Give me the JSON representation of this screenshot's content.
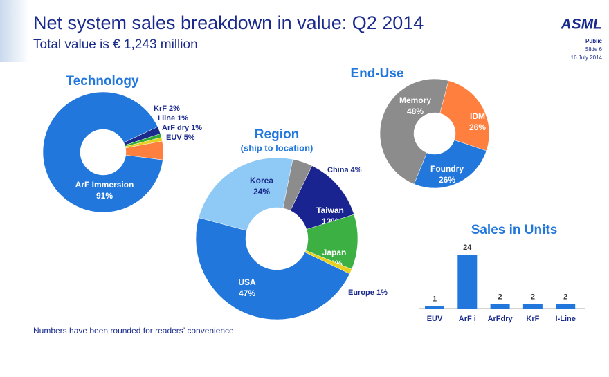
{
  "header": {
    "title": "Net system sales breakdown in value: Q2 2014",
    "subtitle": "Total value is € 1,243 million",
    "logo": "ASML",
    "classification": "Public",
    "slide": "Slide 6",
    "date": "16 July 2014"
  },
  "footnote": "Numbers have been rounded for readers’ convenience",
  "chart_data": [
    {
      "type": "pie",
      "title": "Technology",
      "categories": [
        "KrF",
        "I line",
        "ArF dry",
        "EUV",
        "ArF Immersion"
      ],
      "values": [
        2,
        1,
        1,
        5,
        91
      ],
      "value_labels": [
        "2%",
        "1%",
        "1%",
        "5%",
        "91%"
      ],
      "colors": [
        "#1a2b8c",
        "#33aa33",
        "#e8d020",
        "#ff7f3f",
        "#2277dd"
      ]
    },
    {
      "type": "pie",
      "title": "Region",
      "subtitle": "(ship to location)",
      "categories": [
        "Korea",
        "China",
        "Taiwan",
        "Japan",
        "Europe",
        "USA"
      ],
      "values": [
        24,
        4,
        13,
        11,
        1,
        47
      ],
      "value_labels": [
        "24%",
        "4%",
        "13%",
        "11%",
        "1%",
        "47%"
      ],
      "colors": [
        "#8ecaf5",
        "#8c8c8c",
        "#1a2490",
        "#3cb043",
        "#e8d020",
        "#2277dd"
      ]
    },
    {
      "type": "pie",
      "title": "End-Use",
      "categories": [
        "Memory",
        "IDM",
        "Foundry"
      ],
      "values": [
        48,
        26,
        26
      ],
      "value_labels": [
        "48%",
        "26%",
        "26%"
      ],
      "colors": [
        "#8c8c8c",
        "#ff7f3f",
        "#2277dd"
      ]
    },
    {
      "type": "bar",
      "title": "Sales in Units",
      "categories": [
        "EUV",
        "ArF i",
        "ArFdry",
        "KrF",
        "I-Line"
      ],
      "values": [
        1,
        24,
        2,
        2,
        2
      ],
      "color": "#2277dd"
    }
  ]
}
